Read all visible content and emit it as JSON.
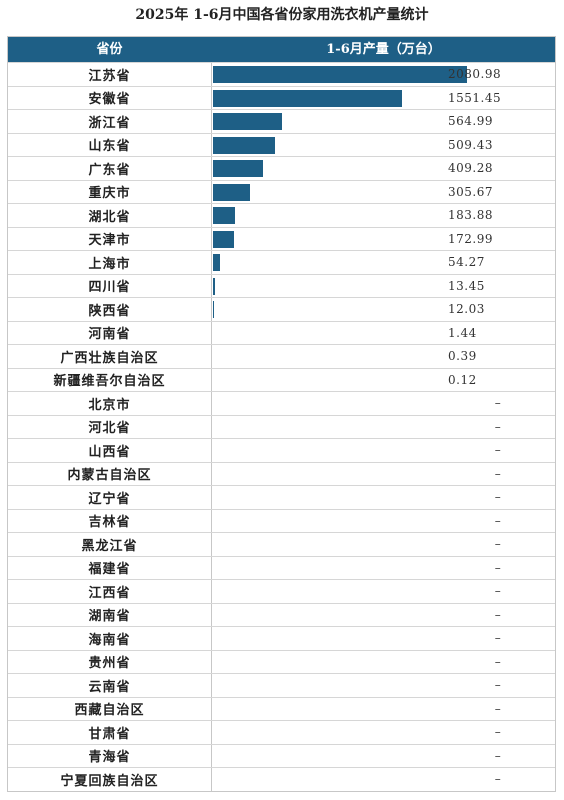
{
  "title": "2025年 1-6月中国各省份家用洗衣机产量统计",
  "chart_data": {
    "type": "bar",
    "title": "2025年 1-6月中国各省份家用洗衣机产量统计",
    "columns": [
      "省份",
      "1-6月产量（万台）"
    ],
    "rows": [
      {
        "province": "江苏省",
        "value": 2080.98,
        "label": "2080.98"
      },
      {
        "province": "安徽省",
        "value": 1551.45,
        "label": "1551.45"
      },
      {
        "province": "浙江省",
        "value": 564.99,
        "label": "564.99"
      },
      {
        "province": "山东省",
        "value": 509.43,
        "label": "509.43"
      },
      {
        "province": "广东省",
        "value": 409.28,
        "label": "409.28"
      },
      {
        "province": "重庆市",
        "value": 305.67,
        "label": "305.67"
      },
      {
        "province": "湖北省",
        "value": 183.88,
        "label": "183.88"
      },
      {
        "province": "天津市",
        "value": 172.99,
        "label": "172.99"
      },
      {
        "province": "上海市",
        "value": 54.27,
        "label": "54.27"
      },
      {
        "province": "四川省",
        "value": 13.45,
        "label": "13.45"
      },
      {
        "province": "陕西省",
        "value": 12.03,
        "label": "12.03"
      },
      {
        "province": "河南省",
        "value": 1.44,
        "label": "1.44"
      },
      {
        "province": "广西壮族自治区",
        "value": 0.39,
        "label": "0.39"
      },
      {
        "province": "新疆维吾尔自治区",
        "value": 0.12,
        "label": "0.12"
      },
      {
        "province": "北京市",
        "value": null,
        "label": "–"
      },
      {
        "province": "河北省",
        "value": null,
        "label": "–"
      },
      {
        "province": "山西省",
        "value": null,
        "label": "–"
      },
      {
        "province": "内蒙古自治区",
        "value": null,
        "label": "–"
      },
      {
        "province": "辽宁省",
        "value": null,
        "label": "–"
      },
      {
        "province": "吉林省",
        "value": null,
        "label": "–"
      },
      {
        "province": "黑龙江省",
        "value": null,
        "label": "–"
      },
      {
        "province": "福建省",
        "value": null,
        "label": "–"
      },
      {
        "province": "江西省",
        "value": null,
        "label": "–"
      },
      {
        "province": "湖南省",
        "value": null,
        "label": "–"
      },
      {
        "province": "海南省",
        "value": null,
        "label": "–"
      },
      {
        "province": "贵州省",
        "value": null,
        "label": "–"
      },
      {
        "province": "云南省",
        "value": null,
        "label": "–"
      },
      {
        "province": "西藏自治区",
        "value": null,
        "label": "–"
      },
      {
        "province": "甘肃省",
        "value": null,
        "label": "–"
      },
      {
        "province": "青海省",
        "value": null,
        "label": "–"
      },
      {
        "province": "宁夏回族自治区",
        "value": null,
        "label": "–"
      }
    ],
    "bar_color": "#1e5f86",
    "header_color": "#1e5f86"
  }
}
